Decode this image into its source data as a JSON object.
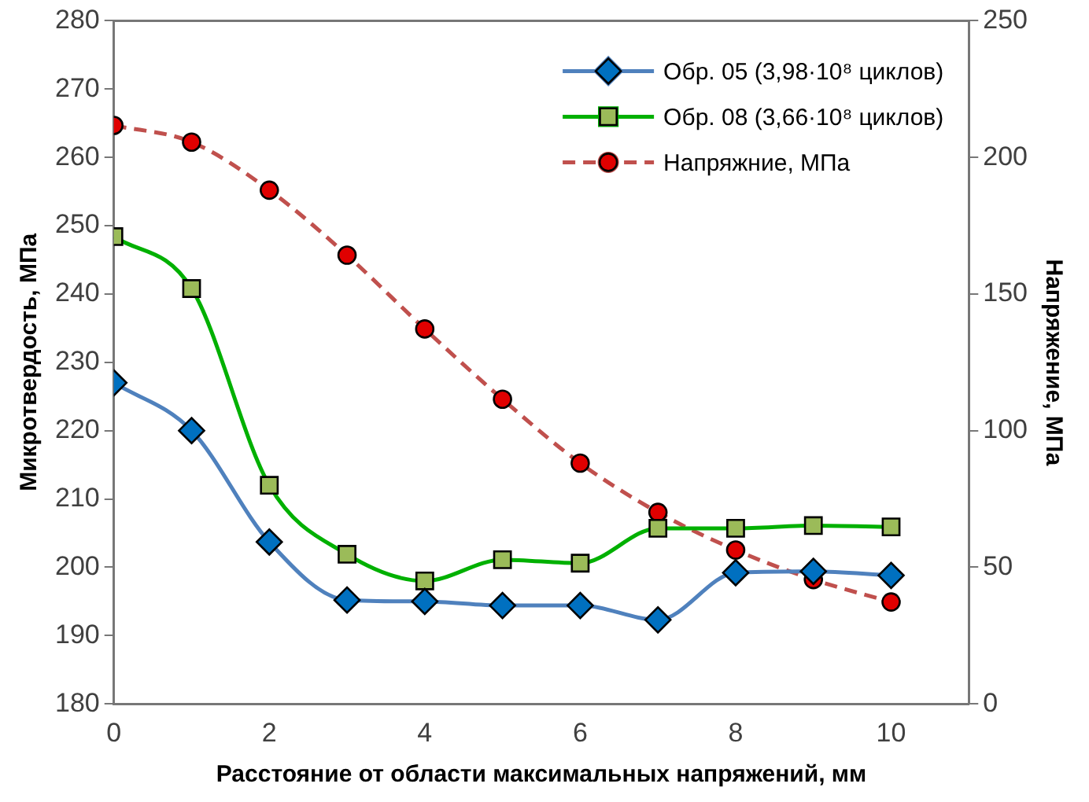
{
  "chart_data": {
    "type": "line",
    "xlabel": "Расстояние от области максимальных напряжений, мм",
    "ylabel": "Микротвердость, МПа",
    "y2label": "Напряжение, МПа",
    "x": [
      0,
      1,
      2,
      3,
      4,
      5,
      6,
      7,
      8,
      9,
      10
    ],
    "series": [
      {
        "name": "Обр. 05 (3,98·10⁸ циклов)",
        "color": "#4f81bd",
        "marker": "diamond",
        "line_style": "solid",
        "values": [
          227,
          220,
          203.7,
          195.2,
          195,
          194.4,
          194.4,
          192.3,
          199.2,
          199.4,
          198.8
        ]
      },
      {
        "name": "Обр. 08 (3,66·10⁸ циклов)",
        "color": "#00b000",
        "marker": "square",
        "line_style": "solid",
        "values": [
          248.4,
          240.8,
          212,
          201.9,
          198,
          201.1,
          200.6,
          205.7,
          205.7,
          206.1,
          205.9
        ]
      },
      {
        "name": "Напряжние, МПа",
        "color": "#c0504d",
        "marker": "circle",
        "line_style": "dashed",
        "axis": "y2",
        "values": [
          211.7,
          205.6,
          188,
          164.2,
          137.2,
          111.5,
          88.1,
          70.1,
          56.3,
          45.5,
          37.3
        ]
      }
    ],
    "xlim": [
      0,
      11
    ],
    "xticks": [
      0,
      2,
      4,
      6,
      8,
      10
    ],
    "ylim": [
      180,
      280
    ],
    "yticks": [
      180,
      190,
      200,
      210,
      220,
      230,
      240,
      250,
      260,
      270,
      280
    ],
    "y2lim": [
      0,
      250
    ],
    "y2ticks": [
      0,
      50,
      100,
      150,
      200,
      250
    ],
    "grid": false,
    "legend": "top right"
  }
}
